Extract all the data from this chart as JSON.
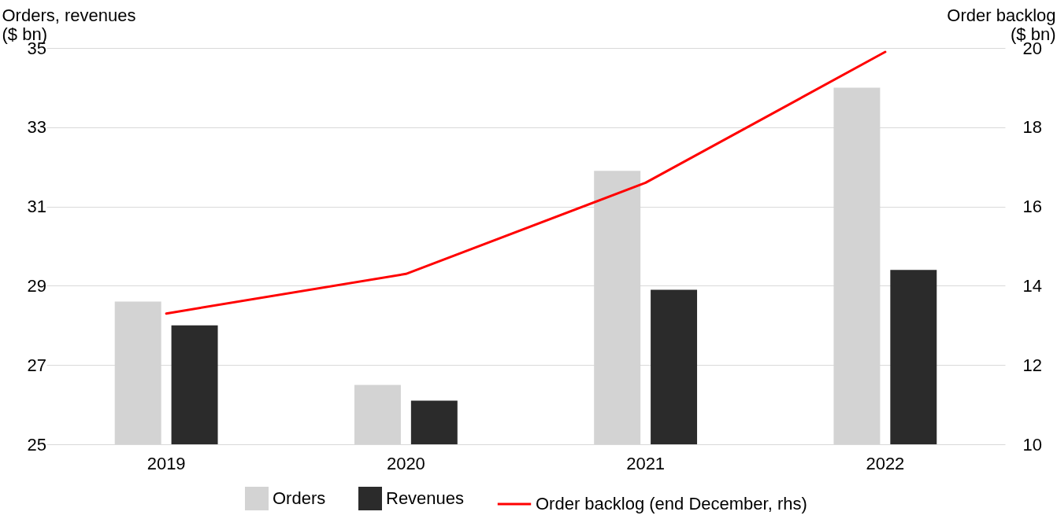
{
  "chart_data": {
    "type": "bar",
    "categories": [
      "2019",
      "2020",
      "2021",
      "2022"
    ],
    "ylabel": "Orders, revenues ($ bn)",
    "y2label": "Order backlog ($ bn)",
    "series": [
      {
        "name": "Orders",
        "color": "#d3d3d3",
        "values": [
          28.6,
          26.5,
          31.9,
          34.0
        ]
      },
      {
        "name": "Revenues",
        "color": "#2b2b2b",
        "values": [
          28.0,
          26.1,
          28.9,
          29.4
        ]
      },
      {
        "name": "Order backlog (end December, rhs)",
        "type": "line",
        "axis": "y2",
        "color": "#ff0000",
        "values": [
          13.3,
          14.3,
          16.6,
          19.9
        ]
      }
    ],
    "ylim": [
      25,
      35
    ],
    "yticks": [
      25,
      27,
      29,
      31,
      33,
      35
    ],
    "y2lim": [
      10,
      20
    ],
    "y2ticks": [
      10,
      12,
      14,
      16,
      18,
      20
    ],
    "grid": "y",
    "legend": "bottom"
  }
}
